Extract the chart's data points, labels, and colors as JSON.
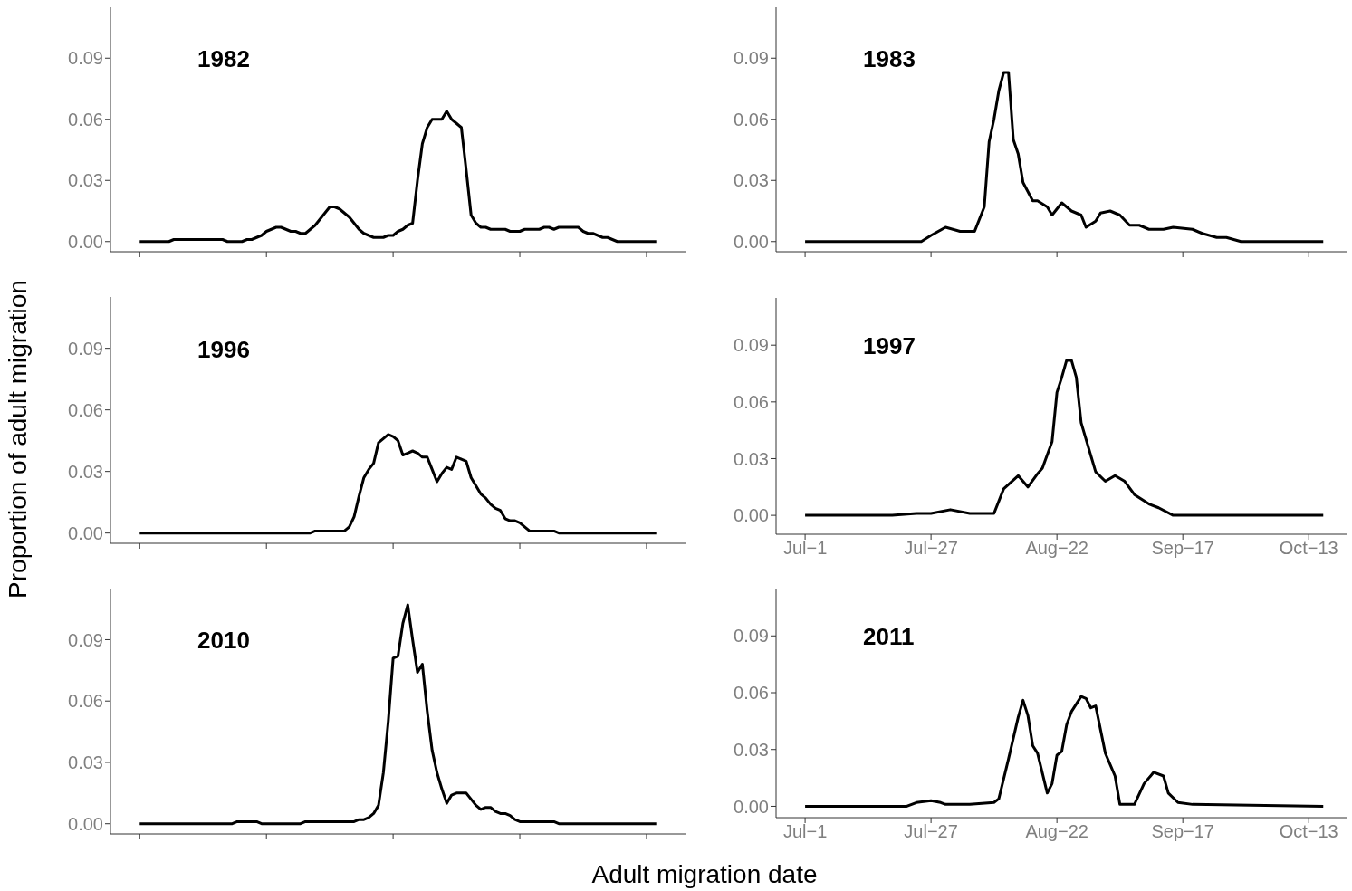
{
  "chart_data": [
    {
      "type": "line",
      "title": "1982",
      "color": "#000000",
      "marker": "none",
      "line_style": "solid",
      "categories": [
        null,
        null,
        null,
        null,
        null,
        null,
        null,
        null,
        null,
        null,
        null,
        null,
        null,
        null,
        null,
        null,
        null,
        null,
        null,
        null,
        null,
        null,
        null,
        null,
        null,
        null,
        null,
        null,
        null,
        null,
        null,
        null,
        null,
        null,
        null,
        null,
        null,
        null,
        null,
        null,
        null,
        null,
        null,
        null,
        null,
        null,
        null,
        null,
        null,
        null,
        null,
        null,
        null,
        null,
        null,
        null,
        null,
        null,
        null,
        null,
        null,
        null,
        null,
        null,
        null,
        null,
        null,
        null,
        null,
        null,
        null,
        null,
        null,
        null,
        null,
        null,
        null,
        null,
        null,
        null,
        null,
        null,
        null,
        null,
        null,
        null,
        null,
        null,
        null,
        null,
        null,
        null,
        null,
        null,
        null,
        null,
        null,
        null,
        null,
        null,
        null,
        null,
        null,
        null,
        null,
        null,
        null
      ],
      "values": [
        0,
        0,
        0,
        0,
        0,
        0,
        0,
        0.001,
        0.001,
        0.001,
        0.001,
        0.001,
        0.001,
        0.001,
        0.001,
        0.001,
        0.001,
        0.001,
        0,
        0,
        0,
        0,
        0.001,
        0.001,
        0.002,
        0.003,
        0.005,
        0.006,
        0.007,
        0.007,
        0.006,
        0.005,
        0.005,
        0.004,
        0.004,
        0.006,
        0.008,
        0.011,
        0.014,
        0.017,
        0.017,
        0.016,
        0.014,
        0.012,
        0.009,
        0.006,
        0.004,
        0.003,
        0.002,
        0.002,
        0.002,
        0.003,
        0.003,
        0.005,
        0.006,
        0.008,
        0.009,
        0.03,
        0.048,
        0.056,
        0.06,
        0.06,
        0.06,
        0.064,
        0.06,
        0.058,
        0.056,
        0.035,
        0.013,
        0.009,
        0.007,
        0.007,
        0.006,
        0.006,
        0.006,
        0.006,
        0.005,
        0.005,
        0.005,
        0.006,
        0.006,
        0.006,
        0.006,
        0.007,
        0.007,
        0.006,
        0.007,
        0.007,
        0.007,
        0.007,
        0.007,
        0.005,
        0.004,
        0.004,
        0.003,
        0.002,
        0.002,
        0.001,
        0,
        0,
        0,
        0,
        0,
        0,
        0,
        0,
        0
      ],
      "ylim": [
        -0.005,
        0.115
      ],
      "yticks": [
        {
          "value": 0,
          "label": "0.00"
        },
        {
          "value": 0.03,
          "label": "0.03"
        },
        {
          "value": 0.06,
          "label": "0.06"
        },
        {
          "value": 0.09,
          "label": "0.09"
        }
      ]
    },
    {
      "type": "line",
      "title": "1983",
      "color": "#000000",
      "marker": "none",
      "line_style": "solid",
      "tick_labels": "y",
      "x": [
        "--07-01",
        "--07-22",
        "--07-25",
        "--07-27",
        "--07-30",
        "--08-02",
        "--08-05",
        "--08-07",
        "--08-08",
        "--08-09",
        "--08-10",
        "--08-11",
        "--08-12",
        "--08-13",
        "--08-14",
        "--08-15",
        "--08-17",
        "--08-18",
        "--08-20",
        "--08-21",
        "--08-23",
        "--08-25",
        "--08-27",
        "--08-28",
        "--08-30",
        "--08-31",
        "--09-02",
        "--09-04",
        "--09-06",
        "--09-08",
        "--09-10",
        "--09-13",
        "--09-15",
        "--09-19",
        "--09-21",
        "--09-24",
        "--09-26",
        "--09-29",
        "--10-16"
      ],
      "values": [
        0,
        0,
        0,
        0.003,
        0.007,
        0.005,
        0.005,
        0.017,
        0.049,
        0.06,
        0.074,
        0.083,
        0.083,
        0.05,
        0.043,
        0.029,
        0.02,
        0.02,
        0.017,
        0.013,
        0.019,
        0.015,
        0.013,
        0.007,
        0.01,
        0.014,
        0.015,
        0.013,
        0.008,
        0.008,
        0.006,
        0.006,
        0.007,
        0.006,
        0.004,
        0.002,
        0.002,
        0,
        0
      ],
      "xlim": [
        "--06-25",
        "--10-21"
      ],
      "ylim": [
        -0.005,
        0.115
      ],
      "xticks": [
        {
          "value": "--07-01",
          "label": null
        },
        {
          "value": "--07-27",
          "label": null
        },
        {
          "value": "--08-22",
          "label": null
        },
        {
          "value": "--09-17",
          "label": null
        },
        {
          "value": "--10-13",
          "label": null
        }
      ],
      "yticks": [
        {
          "value": 0,
          "label": "0.00"
        },
        {
          "value": 0.03,
          "label": "0.03"
        },
        {
          "value": 0.06,
          "label": "0.06"
        },
        {
          "value": 0.09,
          "label": "0.09"
        }
      ]
    },
    {
      "type": "line",
      "title": "1996",
      "ylabel": "Proportion of adult migration",
      "color": "#000000",
      "marker": "none",
      "line_style": "solid",
      "categories": [
        null,
        null,
        null,
        null,
        null,
        null,
        null,
        null,
        null,
        null,
        null,
        null,
        null,
        null,
        null,
        null,
        null,
        null,
        null,
        null,
        null,
        null,
        null,
        null,
        null,
        null,
        null,
        null,
        null,
        null,
        null,
        null,
        null,
        null,
        null,
        null,
        null,
        null,
        null,
        null,
        null,
        null,
        null,
        null,
        null,
        null,
        null,
        null,
        null,
        null,
        null,
        null,
        null,
        null,
        null,
        null,
        null,
        null,
        null,
        null,
        null,
        null,
        null,
        null,
        null,
        null,
        null,
        null,
        null,
        null,
        null,
        null,
        null,
        null,
        null,
        null,
        null,
        null,
        null,
        null,
        null,
        null,
        null,
        null,
        null,
        null,
        null,
        null,
        null,
        null,
        null,
        null,
        null,
        null,
        null,
        null,
        null,
        null,
        null,
        null,
        null,
        null,
        null,
        null,
        null,
        null,
        null
      ],
      "values": [
        0,
        0,
        0,
        0,
        0,
        0,
        0,
        0,
        0,
        0,
        0,
        0,
        0,
        0,
        0,
        0,
        0,
        0,
        0,
        0,
        0,
        0,
        0,
        0,
        0,
        0,
        0,
        0,
        0,
        0,
        0,
        0,
        0,
        0,
        0,
        0,
        0.001,
        0.001,
        0.001,
        0.001,
        0.001,
        0.001,
        0.001,
        0.003,
        0.008,
        0.018,
        0.027,
        0.031,
        0.034,
        0.044,
        0.046,
        0.048,
        0.047,
        0.045,
        0.038,
        0.039,
        0.04,
        0.039,
        0.037,
        0.037,
        0.031,
        0.025,
        0.029,
        0.032,
        0.031,
        0.037,
        0.036,
        0.035,
        0.027,
        0.023,
        0.019,
        0.017,
        0.014,
        0.012,
        0.011,
        0.007,
        0.006,
        0.006,
        0.005,
        0.003,
        0.001,
        0.001,
        0.001,
        0.001,
        0.001,
        0.001,
        0,
        0,
        0,
        0,
        0,
        0,
        0,
        0,
        0,
        0,
        0,
        0,
        0,
        0,
        0,
        0,
        0,
        0,
        0,
        0,
        0
      ],
      "ylim": [
        -0.005,
        0.115
      ],
      "yticks": [
        {
          "value": 0,
          "label": "0.00"
        },
        {
          "value": 0.03,
          "label": "0.03"
        },
        {
          "value": 0.06,
          "label": "0.06"
        },
        {
          "value": 0.09,
          "label": "0.09"
        }
      ]
    },
    {
      "type": "line",
      "title": "1997",
      "color": "#000000",
      "marker": "none",
      "line_style": "solid",
      "x": [
        "--07-01",
        "--07-19",
        "--07-24",
        "--07-27",
        "--07-31",
        "--08-04",
        "--08-09",
        "--08-11",
        "--08-14",
        "--08-16",
        "--08-18",
        "--08-19",
        "--08-21",
        "--08-22",
        "--08-23",
        "--08-24",
        "--08-25",
        "--08-26",
        "--08-27",
        "--08-30",
        "--09-01",
        "--09-03",
        "--09-05",
        "--09-07",
        "--09-10",
        "--09-12",
        "--09-15",
        "--10-16"
      ],
      "values": [
        0,
        0,
        0.001,
        0.001,
        0.003,
        0.001,
        0.001,
        0.014,
        0.021,
        0.015,
        0.022,
        0.025,
        0.039,
        0.065,
        0.073,
        0.082,
        0.082,
        0.073,
        0.049,
        0.023,
        0.018,
        0.021,
        0.018,
        0.011,
        0.006,
        0.004,
        0,
        0
      ],
      "xlim": [
        "--06-25",
        "--10-21"
      ],
      "ylim": [
        -0.01,
        0.115
      ],
      "xticks": [
        {
          "value": "--07-01",
          "label": "Jul−1"
        },
        {
          "value": "--07-27",
          "label": "Jul−27"
        },
        {
          "value": "--08-22",
          "label": "Aug−22"
        },
        {
          "value": "--09-17",
          "label": "Sep−17"
        },
        {
          "value": "--10-13",
          "label": "Oct−13"
        }
      ],
      "yticks": [
        {
          "value": 0,
          "label": "0.00"
        },
        {
          "value": 0.03,
          "label": "0.03"
        },
        {
          "value": 0.06,
          "label": "0.06"
        },
        {
          "value": 0.09,
          "label": "0.09"
        }
      ]
    },
    {
      "type": "line",
      "title": "2010",
      "xlabel": "Adult migration date",
      "color": "#000000",
      "marker": "none",
      "line_style": "solid",
      "categories": [
        null,
        null,
        null,
        null,
        null,
        null,
        null,
        null,
        null,
        null,
        null,
        null,
        null,
        null,
        null,
        null,
        null,
        null,
        null,
        null,
        null,
        null,
        null,
        null,
        null,
        null,
        null,
        null,
        null,
        null,
        null,
        null,
        null,
        null,
        null,
        null,
        null,
        null,
        null,
        null,
        null,
        null,
        null,
        null,
        null,
        null,
        null,
        null,
        null,
        null,
        null,
        null,
        null,
        null,
        null,
        null,
        null,
        null,
        null,
        null,
        null,
        null,
        null,
        null,
        null,
        null,
        null,
        null,
        null,
        null,
        null,
        null,
        null,
        null,
        null,
        null,
        null,
        null,
        null,
        null,
        null,
        null,
        null,
        null,
        null,
        null,
        null,
        null,
        null,
        null,
        null,
        null,
        null,
        null,
        null,
        null,
        null,
        null,
        null,
        null,
        null,
        null,
        null,
        null,
        null,
        null,
        null
      ],
      "values": [
        0,
        0,
        0,
        0,
        0,
        0,
        0,
        0,
        0,
        0,
        0,
        0,
        0,
        0,
        0,
        0,
        0,
        0,
        0,
        0,
        0.001,
        0.001,
        0.001,
        0.001,
        0.001,
        0,
        0,
        0,
        0,
        0,
        0,
        0,
        0,
        0,
        0.001,
        0.001,
        0.001,
        0.001,
        0.001,
        0.001,
        0.001,
        0.001,
        0.001,
        0.001,
        0.001,
        0.002,
        0.002,
        0.003,
        0.005,
        0.009,
        0.025,
        0.05,
        0.081,
        0.082,
        0.098,
        0.107,
        0.09,
        0.074,
        0.078,
        0.055,
        0.036,
        0.025,
        0.017,
        0.01,
        0.014,
        0.015,
        0.015,
        0.015,
        0.012,
        0.009,
        0.007,
        0.008,
        0.008,
        0.006,
        0.005,
        0.005,
        0.004,
        0.002,
        0.001,
        0.001,
        0.001,
        0.001,
        0.001,
        0.001,
        0.001,
        0.001,
        0,
        0,
        0,
        0,
        0,
        0,
        0,
        0,
        0,
        0,
        0,
        0,
        0,
        0,
        0,
        0,
        0,
        0,
        0,
        0,
        0
      ],
      "ylim": [
        -0.005,
        0.115
      ],
      "yticks": [
        {
          "value": 0,
          "label": "0.00"
        },
        {
          "value": 0.03,
          "label": "0.03"
        },
        {
          "value": 0.06,
          "label": "0.06"
        },
        {
          "value": 0.09,
          "label": "0.09"
        }
      ]
    },
    {
      "type": "line",
      "title": "2011",
      "color": "#000000",
      "marker": "none",
      "line_style": "solid",
      "x": [
        "--07-01",
        "--07-22",
        "--07-24",
        "--07-27",
        "--07-29",
        "--07-30",
        "--08-04",
        "--08-09",
        "--08-10",
        "--08-12",
        "--08-14",
        "--08-15",
        "--08-16",
        "--08-17",
        "--08-18",
        "--08-20",
        "--08-21",
        "--08-22",
        "--08-23",
        "--08-24",
        "--08-25",
        "--08-27",
        "--08-28",
        "--08-29",
        "--08-30",
        "--09-01",
        "--09-03",
        "--09-04",
        "--09-07",
        "--09-09",
        "--09-11",
        "--09-13",
        "--09-14",
        "--09-16",
        "--09-19",
        "--10-16"
      ],
      "values": [
        0,
        0,
        0.002,
        0.003,
        0.002,
        0.001,
        0.001,
        0.002,
        0.004,
        0.025,
        0.047,
        0.056,
        0.048,
        0.032,
        0.028,
        0.007,
        0.012,
        0.027,
        0.029,
        0.043,
        0.05,
        0.058,
        0.057,
        0.052,
        0.053,
        0.028,
        0.016,
        0.001,
        0.001,
        0.012,
        0.018,
        0.016,
        0.007,
        0.002,
        0.001,
        0
      ],
      "xlim": [
        "--06-25",
        "--10-21"
      ],
      "ylim": [
        -0.006,
        0.115
      ],
      "xticks": [
        {
          "value": "--07-01",
          "label": "Jul−1"
        },
        {
          "value": "--07-27",
          "label": "Jul−27"
        },
        {
          "value": "--08-22",
          "label": "Aug−22"
        },
        {
          "value": "--09-17",
          "label": "Sep−17"
        },
        {
          "value": "--10-13",
          "label": "Oct−13"
        }
      ],
      "yticks": [
        {
          "value": 0,
          "label": "0.00"
        },
        {
          "value": 0.03,
          "label": "0.03"
        },
        {
          "value": 0.06,
          "label": "0.06"
        },
        {
          "value": 0.09,
          "label": "0.09"
        }
      ]
    }
  ]
}
